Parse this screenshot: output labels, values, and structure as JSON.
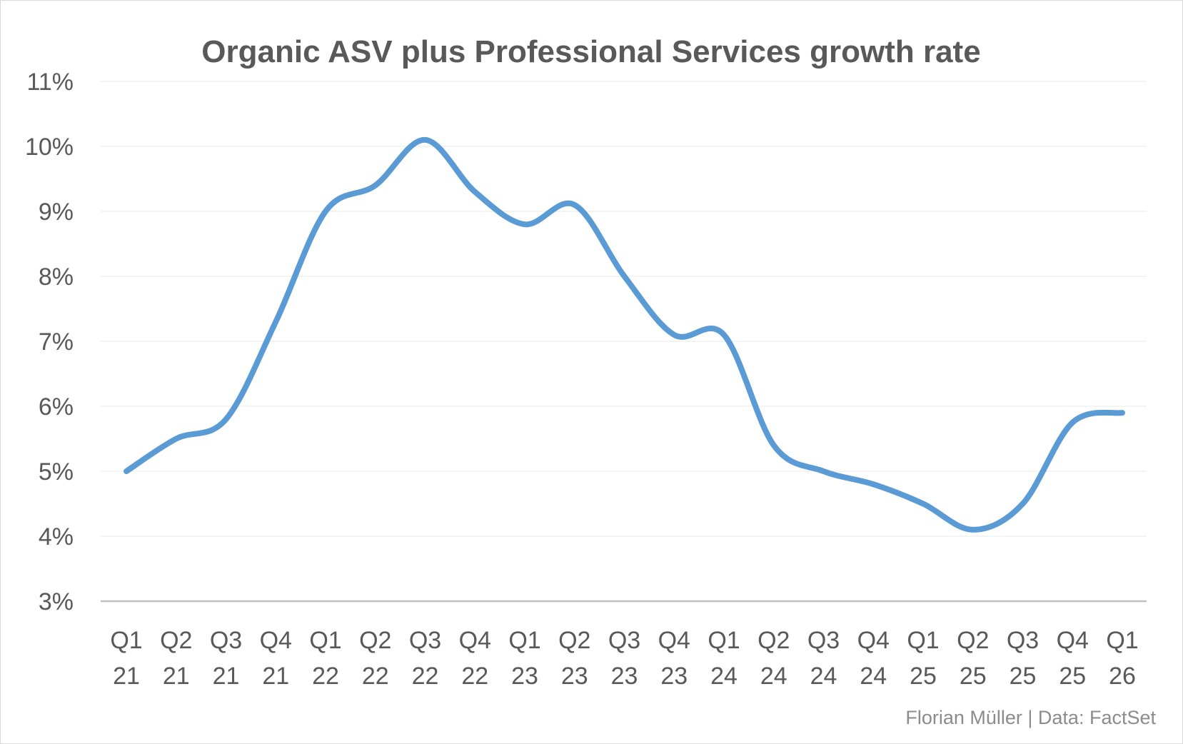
{
  "chart_data": {
    "type": "line",
    "title": "Organic ASV plus Professional Services growth rate",
    "xlabel": "",
    "ylabel": "",
    "categories": [
      [
        "Q1",
        "21"
      ],
      [
        "Q2",
        "21"
      ],
      [
        "Q3",
        "21"
      ],
      [
        "Q4",
        "21"
      ],
      [
        "Q1",
        "22"
      ],
      [
        "Q2",
        "22"
      ],
      [
        "Q3",
        "22"
      ],
      [
        "Q4",
        "22"
      ],
      [
        "Q1",
        "23"
      ],
      [
        "Q2",
        "23"
      ],
      [
        "Q3",
        "23"
      ],
      [
        "Q4",
        "23"
      ],
      [
        "Q1",
        "24"
      ],
      [
        "Q2",
        "24"
      ],
      [
        "Q3",
        "24"
      ],
      [
        "Q4",
        "24"
      ],
      [
        "Q1",
        "25"
      ],
      [
        "Q2",
        "25"
      ],
      [
        "Q3",
        "25"
      ],
      [
        "Q4",
        "25"
      ],
      [
        "Q1",
        "26"
      ]
    ],
    "series": [
      {
        "color": "#5b9bd5",
        "values": [
          5.0,
          5.5,
          5.8,
          7.3,
          9.0,
          9.4,
          10.1,
          9.3,
          8.8,
          9.1,
          8.0,
          7.1,
          7.1,
          5.4,
          5.0,
          4.8,
          4.5,
          4.1,
          4.5,
          5.75,
          5.9
        ]
      }
    ],
    "ylim": [
      3,
      11
    ],
    "yticks": [
      "3%",
      "4%",
      "5%",
      "6%",
      "7%",
      "8%",
      "9%",
      "10%",
      "11%"
    ],
    "grid": true,
    "legend": "none",
    "smooth": true
  },
  "credit": "Florian Müller | Data: FactSet"
}
